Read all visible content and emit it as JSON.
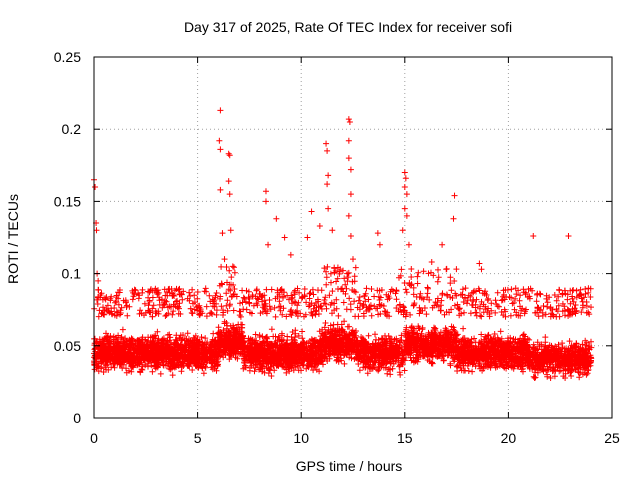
{
  "chart_data": {
    "type": "scatter",
    "title": "Day 317 of 2025, Rate Of TEC Index for receiver sofi",
    "xlabel": "GPS time / hours",
    "ylabel": "ROTI / TECUs",
    "xlim": [
      0,
      25
    ],
    "ylim": [
      0,
      0.25
    ],
    "x_ticks": [
      "0",
      "5",
      "10",
      "15",
      "20",
      "25"
    ],
    "y_ticks": [
      "0",
      "0.05",
      "0.1",
      "0.15",
      "0.2",
      "0.25"
    ],
    "grid": true,
    "marker": "+",
    "color": "#ff0000",
    "series": [
      {
        "name": "ROTI",
        "x_range_hours": [
          0,
          24
        ],
        "typical_range": [
          0.02,
          0.07
        ],
        "dense_center": 0.045,
        "notes": "dense band of thousands of points; selected peaks listed",
        "peaks": [
          {
            "x": 0.0,
            "y": 0.165
          },
          {
            "x": 0.05,
            "y": 0.16
          },
          {
            "x": 0.1,
            "y": 0.135
          },
          {
            "x": 0.12,
            "y": 0.13
          },
          {
            "x": 0.15,
            "y": 0.1
          },
          {
            "x": 0.2,
            "y": 0.095
          },
          {
            "x": 6.1,
            "y": 0.213
          },
          {
            "x": 6.05,
            "y": 0.192
          },
          {
            "x": 6.1,
            "y": 0.186
          },
          {
            "x": 6.5,
            "y": 0.183
          },
          {
            "x": 6.55,
            "y": 0.182
          },
          {
            "x": 6.5,
            "y": 0.164
          },
          {
            "x": 6.55,
            "y": 0.155
          },
          {
            "x": 6.1,
            "y": 0.158
          },
          {
            "x": 6.2,
            "y": 0.128
          },
          {
            "x": 6.6,
            "y": 0.13
          },
          {
            "x": 6.3,
            "y": 0.11
          },
          {
            "x": 6.7,
            "y": 0.105
          },
          {
            "x": 8.3,
            "y": 0.157
          },
          {
            "x": 8.3,
            "y": 0.15
          },
          {
            "x": 8.8,
            "y": 0.138
          },
          {
            "x": 8.4,
            "y": 0.12
          },
          {
            "x": 9.2,
            "y": 0.125
          },
          {
            "x": 9.5,
            "y": 0.113
          },
          {
            "x": 10.5,
            "y": 0.143
          },
          {
            "x": 10.3,
            "y": 0.125
          },
          {
            "x": 10.9,
            "y": 0.133
          },
          {
            "x": 11.2,
            "y": 0.19
          },
          {
            "x": 11.25,
            "y": 0.185
          },
          {
            "x": 11.3,
            "y": 0.168
          },
          {
            "x": 11.25,
            "y": 0.162
          },
          {
            "x": 11.3,
            "y": 0.145
          },
          {
            "x": 11.5,
            "y": 0.13
          },
          {
            "x": 12.3,
            "y": 0.207
          },
          {
            "x": 12.35,
            "y": 0.205
          },
          {
            "x": 12.3,
            "y": 0.192
          },
          {
            "x": 12.3,
            "y": 0.18
          },
          {
            "x": 12.4,
            "y": 0.172
          },
          {
            "x": 12.4,
            "y": 0.155
          },
          {
            "x": 12.3,
            "y": 0.14
          },
          {
            "x": 12.4,
            "y": 0.126
          },
          {
            "x": 12.5,
            "y": 0.11
          },
          {
            "x": 13.7,
            "y": 0.128
          },
          {
            "x": 13.8,
            "y": 0.12
          },
          {
            "x": 15.0,
            "y": 0.17
          },
          {
            "x": 15.05,
            "y": 0.166
          },
          {
            "x": 15.0,
            "y": 0.16
          },
          {
            "x": 15.1,
            "y": 0.155
          },
          {
            "x": 15.0,
            "y": 0.145
          },
          {
            "x": 15.1,
            "y": 0.14
          },
          {
            "x": 14.9,
            "y": 0.13
          },
          {
            "x": 15.2,
            "y": 0.12
          },
          {
            "x": 16.8,
            "y": 0.12
          },
          {
            "x": 16.3,
            "y": 0.108
          },
          {
            "x": 17.0,
            "y": 0.103
          },
          {
            "x": 17.4,
            "y": 0.154
          },
          {
            "x": 17.35,
            "y": 0.138
          },
          {
            "x": 18.6,
            "y": 0.107
          },
          {
            "x": 18.7,
            "y": 0.103
          },
          {
            "x": 21.2,
            "y": 0.126
          },
          {
            "x": 22.9,
            "y": 0.126
          }
        ]
      }
    ]
  }
}
